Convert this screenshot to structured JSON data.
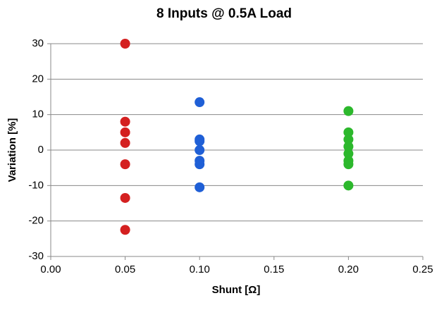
{
  "chart_data": {
    "type": "scatter",
    "title": "8 Inputs @ 0.5A Load",
    "x_label": "Shunt [Ω]",
    "y_label": "Variation [%]",
    "xlim": [
      0,
      0.25
    ],
    "xticks": [
      {
        "value": 0,
        "label": "0.00"
      },
      0.05,
      {
        "value": 0.1,
        "label": "0.10"
      },
      0.15,
      {
        "value": 0.2,
        "label": "0.20"
      },
      0.25
    ],
    "ylim": [
      -30,
      30
    ],
    "yticks": [
      -30,
      -20,
      -10,
      0,
      10,
      20,
      30
    ],
    "grid": true,
    "series": [
      {
        "color": "#d42020",
        "x": [
          0.05,
          0.05,
          0.05,
          0.05,
          0.05,
          0.05,
          0.05
        ],
        "values": [
          30,
          8,
          5,
          2,
          -4,
          -13.5,
          -22.5
        ]
      },
      {
        "color": "#1f5fd6",
        "x": [
          0.1,
          0.1,
          0.1,
          0.1,
          0.1,
          0.1,
          0.1
        ],
        "values": [
          13.5,
          3,
          2.5,
          0,
          -3,
          -4,
          -10.5
        ]
      },
      {
        "color": "#2cb82c",
        "x": [
          0.2,
          0.2,
          0.2,
          0.2,
          0.2,
          0.2,
          0.2,
          0.2
        ],
        "values": [
          11,
          5,
          3,
          1,
          -1,
          -3,
          -4,
          -10
        ]
      }
    ]
  }
}
